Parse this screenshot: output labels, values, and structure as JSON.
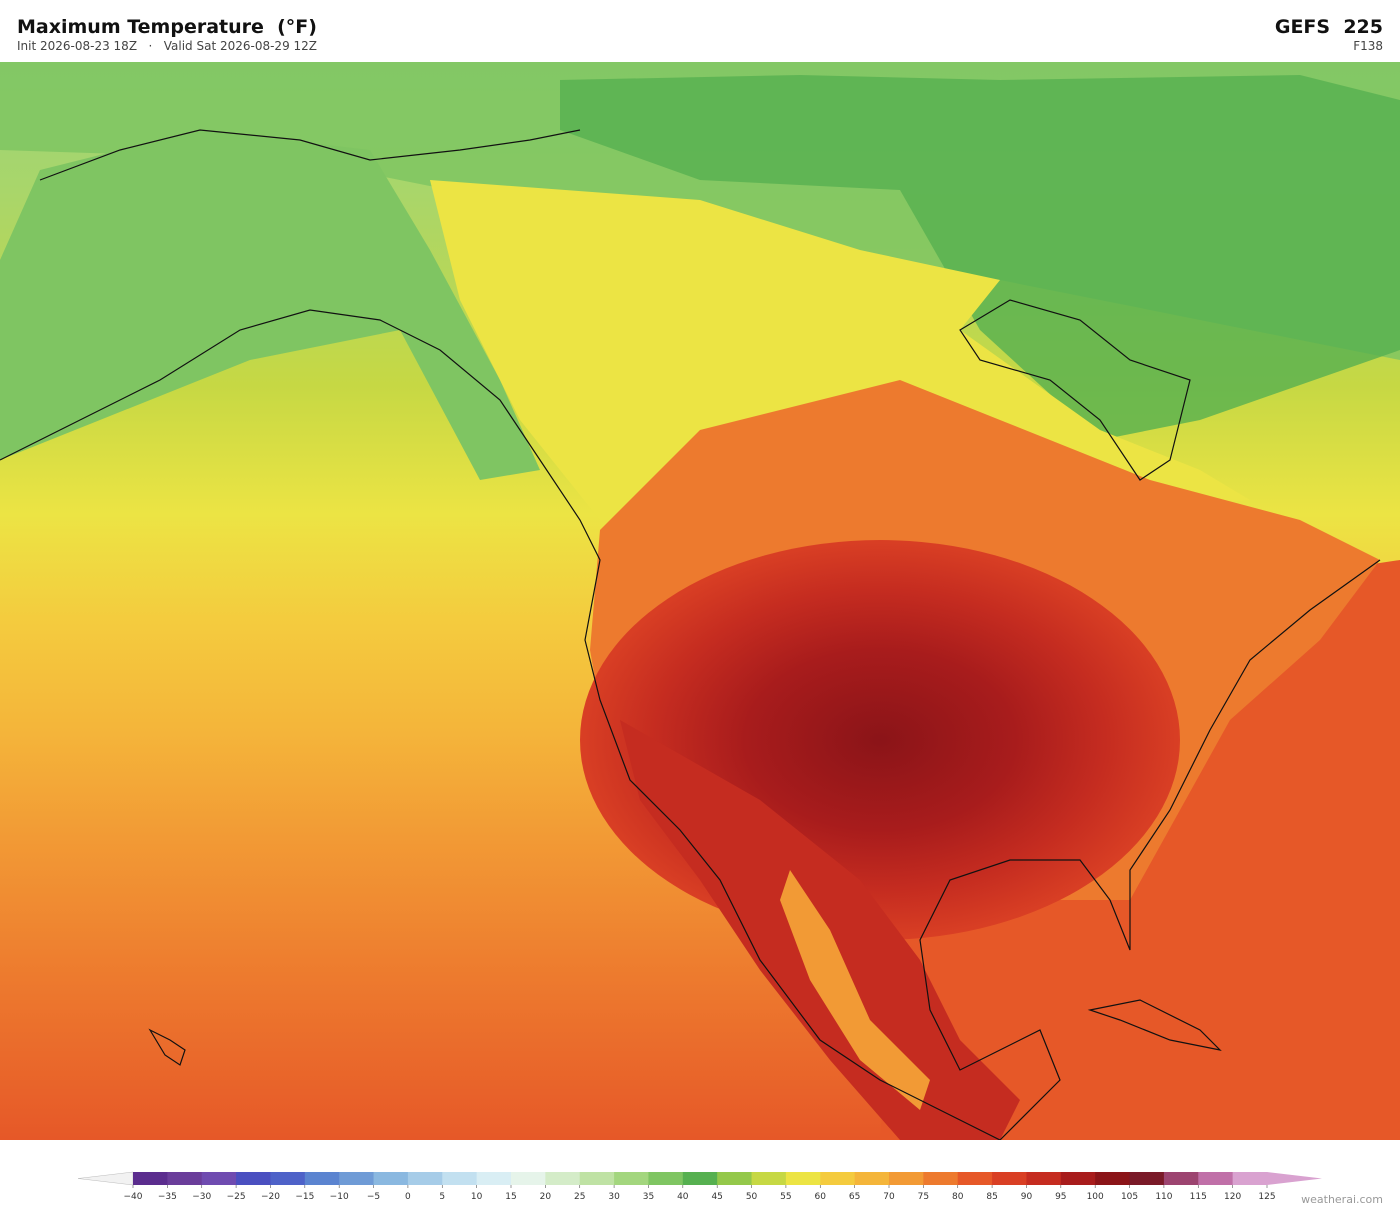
{
  "header": {
    "title": "Maximum Temperature  (°F)",
    "subtitle": "Init 2026-08-23 18Z   ·   Valid Sat 2026-08-29 12Z",
    "model": "GEFS  225",
    "step": "F138"
  },
  "colorbar": {
    "ticks": [
      "−40",
      "−35",
      "−30",
      "−25",
      "−20",
      "−15",
      "−10",
      "−5",
      "0",
      "5",
      "10",
      "15",
      "20",
      "25",
      "30",
      "35",
      "40",
      "45",
      "50",
      "55",
      "60",
      "65",
      "70",
      "75",
      "80",
      "85",
      "90",
      "95",
      "100",
      "105",
      "110",
      "115",
      "120",
      "125"
    ],
    "colors": [
      "#5b2d8e",
      "#6a3d9a",
      "#6f4bb0",
      "#4a4fc0",
      "#4e62c8",
      "#5b84d0",
      "#6f9bd6",
      "#8ab8e0",
      "#a6cce8",
      "#c2e0f0",
      "#d9eef4",
      "#e6f4ea",
      "#d4ecc8",
      "#bfe2a4",
      "#a3d67e",
      "#7fc562",
      "#56b050",
      "#94c84a",
      "#c6d844",
      "#ece444",
      "#f4cb3e",
      "#f4b53a",
      "#f29a35",
      "#ed7a2e",
      "#e65828",
      "#d93f24",
      "#c52c20",
      "#a81c1c",
      "#8b1418",
      "#7a1a28",
      "#9c4470",
      "#c070a8",
      "#d9a2d0"
    ],
    "under_color": "#f2f2f2",
    "over_color": "#d9a2d0"
  },
  "credit": "weatherai.com"
}
